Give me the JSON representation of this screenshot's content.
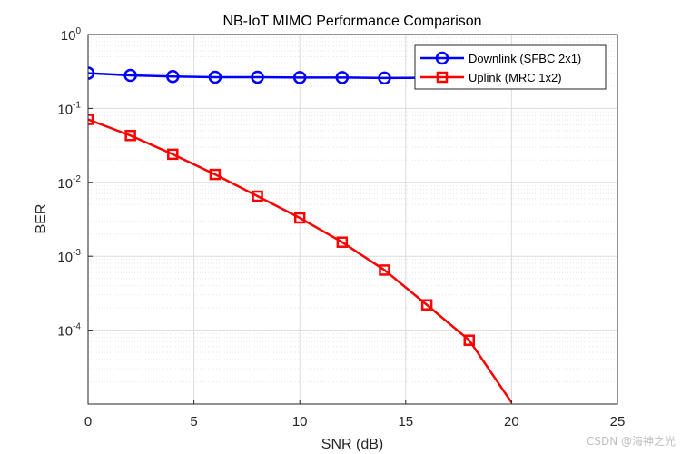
{
  "chart_data": {
    "type": "line",
    "title": "NB-IoT MIMO Performance Comparison",
    "xlabel": "SNR (dB)",
    "ylabel": "BER",
    "xlim": [
      0,
      25
    ],
    "ylim": [
      1e-05,
      1
    ],
    "yscale": "log",
    "grid": true,
    "minor_grid": true,
    "legend_position": "top-right",
    "x_ticks": [
      "0",
      "5",
      "10",
      "15",
      "20",
      "25"
    ],
    "y_ticks": [
      {
        "base": "10",
        "exp": "0"
      },
      {
        "base": "10",
        "exp": "-1"
      },
      {
        "base": "10",
        "exp": "-2"
      },
      {
        "base": "10",
        "exp": "-3"
      },
      {
        "base": "10",
        "exp": "-4"
      }
    ],
    "x": [
      0,
      2,
      4,
      6,
      8,
      10,
      12,
      14,
      16,
      18,
      20
    ],
    "series": [
      {
        "name": "Downlink (SFBC 2x1)",
        "color": "#0000ff",
        "marker": "circle",
        "values": [
          0.3,
          0.28,
          0.27,
          0.265,
          0.265,
          0.262,
          0.262,
          0.258,
          0.26,
          0.26,
          0.26
        ]
      },
      {
        "name": "Uplink (MRC 1x2)",
        "color": "#ff0000",
        "marker": "square",
        "values": [
          0.071,
          0.043,
          0.024,
          0.0128,
          0.0065,
          0.0033,
          0.00155,
          0.00065,
          0.00022,
          7.3e-05,
          1.05e-05
        ]
      }
    ]
  },
  "watermark": "CSDN @海神之光"
}
